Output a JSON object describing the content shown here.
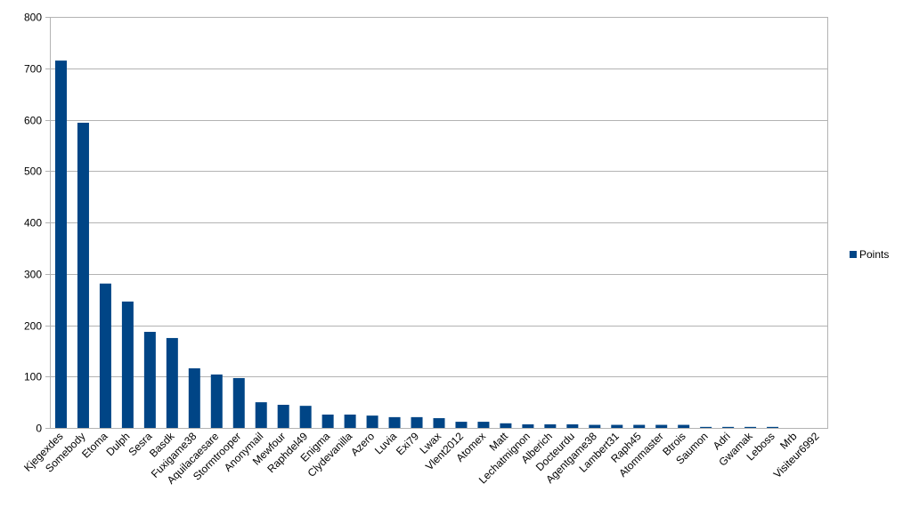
{
  "chart_data": {
    "type": "bar",
    "title": "",
    "xlabel": "",
    "ylabel": "",
    "ylim": [
      0,
      800
    ],
    "yticks": [
      0,
      100,
      200,
      300,
      400,
      500,
      600,
      700,
      800
    ],
    "grid": true,
    "legend_position": "right",
    "categories": [
      "Kjegexdes",
      "Somebody",
      "Etoma",
      "Dulph",
      "Sesra",
      "Basdk",
      "Fuxigame38",
      "Aquilacaesare",
      "Stormtrooper",
      "Anonymail",
      "Mewfour",
      "Raphdel49",
      "Enigma",
      "Clydevanilla",
      "Azero",
      "Luvia",
      "Exi79",
      "Lwax",
      "Vlent2012",
      "Atomex",
      "Matt",
      "Lechatmignon",
      "Alberich",
      "Docteurdu",
      "Agentgame38",
      "Lambert31",
      "Raph45",
      "Atommaster",
      "Btrois",
      "Saumon",
      "Adri",
      "Gwamak",
      "Leboss",
      "Mrb",
      "Visiteur6992"
    ],
    "series": [
      {
        "name": "Points",
        "color": "#004586",
        "values": [
          715,
          594,
          281,
          246,
          187,
          175,
          116,
          104,
          97,
          50,
          45,
          43,
          26,
          26,
          24,
          21,
          21,
          19,
          12,
          12,
          9,
          7,
          7,
          7,
          6,
          6,
          6,
          6,
          6,
          2,
          2,
          2,
          2,
          0,
          0
        ]
      }
    ]
  }
}
